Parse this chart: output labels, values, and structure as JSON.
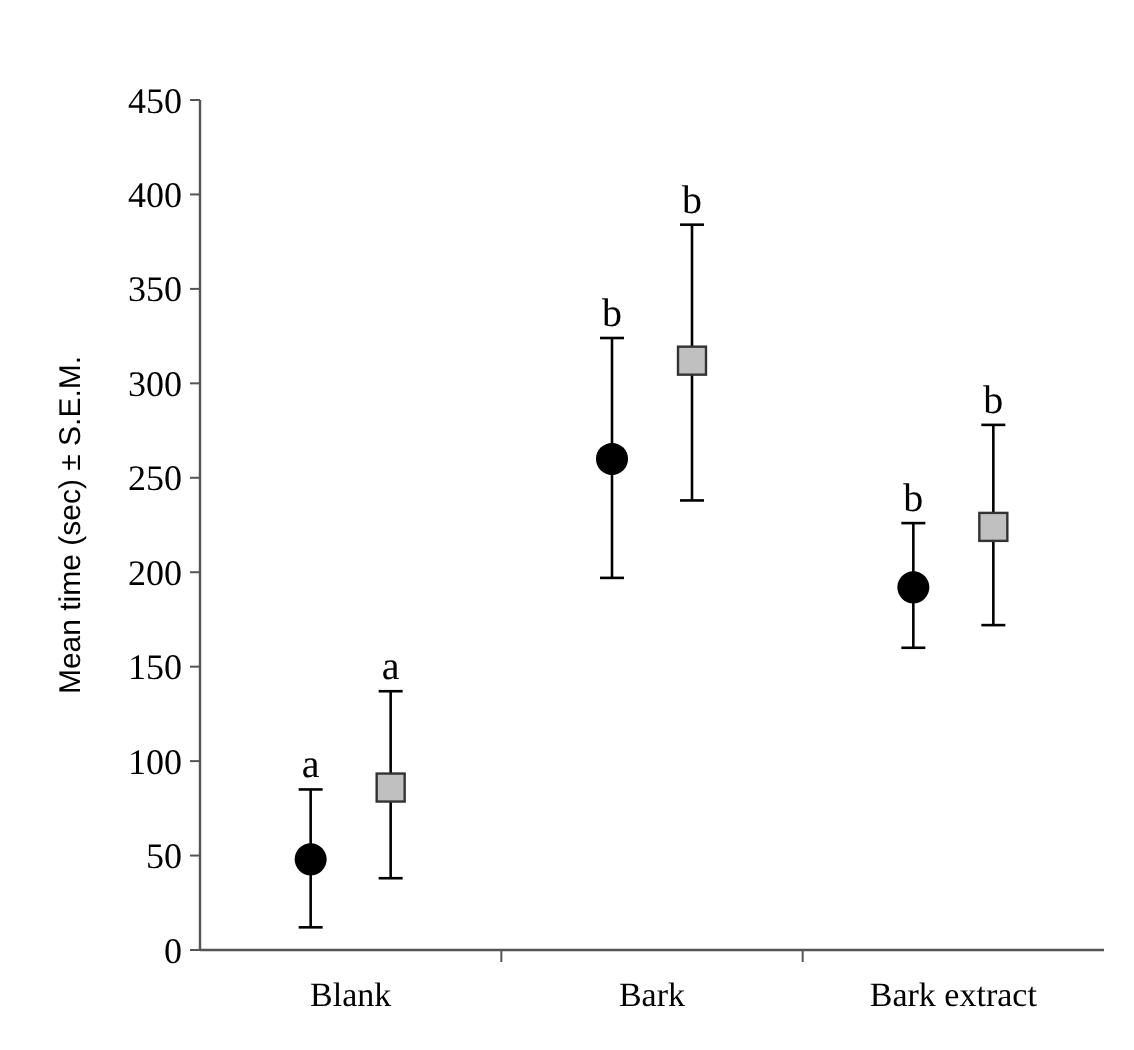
{
  "chart_data": {
    "type": "scatter",
    "ylabel": "Mean time (sec) ± S.E.M.",
    "categories": [
      "Blank",
      "Bark",
      "Bark extract"
    ],
    "series": [
      {
        "color": "#000000",
        "marker": "circle",
        "values": [
          48,
          260,
          192
        ],
        "errors": [
          [
            12,
            85
          ],
          [
            197,
            324
          ],
          [
            160,
            226
          ]
        ]
      },
      {
        "color": "#c0c0c0",
        "marker": "square",
        "values": [
          86,
          312,
          224
        ],
        "errors": [
          [
            38,
            137
          ],
          [
            238,
            384
          ],
          [
            172,
            278
          ]
        ]
      }
    ],
    "ylim": [
      0,
      450
    ],
    "yticks": [
      0,
      50,
      100,
      150,
      200,
      250,
      300,
      350,
      400,
      450
    ],
    "grid": false,
    "annotations": [
      "a",
      "a",
      "b",
      "b",
      "b",
      "b"
    ]
  }
}
